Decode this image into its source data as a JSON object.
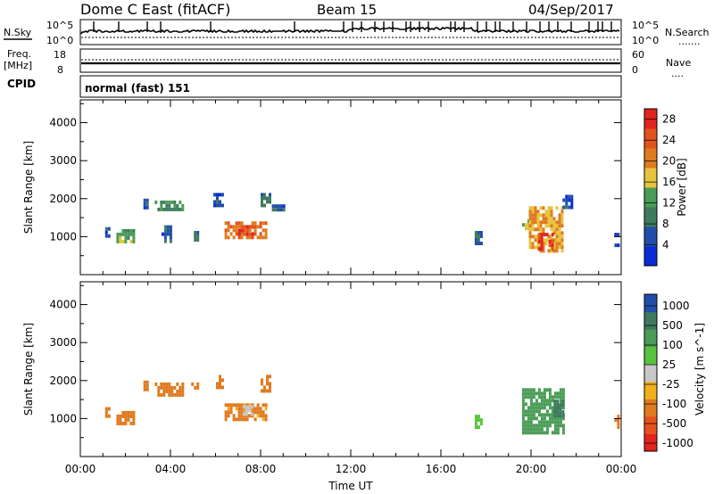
{
  "header": {
    "title": "Dome C East (fitACF)",
    "beam": "Beam 15",
    "date": "04/Sep/2017"
  },
  "nsky_panel": {
    "left_label": "N.Sky",
    "right_label": "N.Search",
    "left_ticks": [
      "10^5",
      "10^0"
    ],
    "right_ticks": [
      "10^5",
      "10^0"
    ]
  },
  "freq_panel": {
    "left_label_line1": "Freq.",
    "left_label_line2": "[MHz]",
    "right_label": "Nave",
    "left_ticks": [
      "18",
      "8"
    ],
    "right_ticks": [
      "60",
      "0"
    ]
  },
  "cpid": {
    "label": "CPID",
    "value": "normal (fast) 151"
  },
  "colors": {
    "blue": "#1f4fa8",
    "dark_green": "#3e7a5e",
    "green": "#4a9c56",
    "yellow": "#e6c43c",
    "orange": "#e07a1f",
    "red": "#e0251d",
    "gray": "#c8c8c8",
    "light_green": "#58c43e"
  },
  "chart_data": [
    {
      "type": "heatmap",
      "name": "Power",
      "ylabel": "Slant Range [km]",
      "xlabel": "Time UT",
      "x_ticks": [
        "00:00",
        "04:00",
        "08:00",
        "12:00",
        "16:00",
        "20:00",
        "00:00"
      ],
      "y_ticks": [
        "1000",
        "2000",
        "3000",
        "4000"
      ],
      "ylim": [
        0,
        4600
      ],
      "xlim_hours": [
        0,
        24
      ],
      "colorbar": {
        "label": "Power [dB]",
        "ticks": [
          "4",
          "8",
          "12",
          "16",
          "20",
          "24",
          "28"
        ],
        "range": [
          0,
          30
        ]
      },
      "patches": [
        {
          "t0": 1.1,
          "t1": 1.3,
          "r0": 1000,
          "r1": 1250,
          "v": 6
        },
        {
          "t0": 1.6,
          "t1": 2.4,
          "r0": 900,
          "r1": 1200,
          "v": 14
        },
        {
          "t0": 2.8,
          "t1": 3.0,
          "r0": 1750,
          "r1": 2000,
          "v": 5
        },
        {
          "t0": 3.3,
          "t1": 4.6,
          "r0": 1700,
          "r1": 1950,
          "v": 11
        },
        {
          "t0": 3.6,
          "t1": 4.0,
          "r0": 900,
          "r1": 1300,
          "v": 6
        },
        {
          "t0": 4.8,
          "t1": 5.2,
          "r0": 950,
          "r1": 1150,
          "v": 7
        },
        {
          "t0": 5.9,
          "t1": 6.3,
          "r0": 1850,
          "r1": 2150,
          "v": 6
        },
        {
          "t0": 6.4,
          "t1": 8.3,
          "r0": 950,
          "r1": 1400,
          "v": 22
        },
        {
          "t0": 7.0,
          "t1": 7.7,
          "r0": 1100,
          "r1": 1300,
          "v": 28
        },
        {
          "t0": 8.0,
          "t1": 8.4,
          "r0": 1800,
          "r1": 2150,
          "v": 7
        },
        {
          "t0": 8.5,
          "t1": 9.0,
          "r0": 1700,
          "r1": 1850,
          "v": 6
        },
        {
          "t0": 17.5,
          "t1": 17.8,
          "r0": 800,
          "r1": 1150,
          "v": 8
        },
        {
          "t0": 19.6,
          "t1": 20.0,
          "r0": 1200,
          "r1": 1450,
          "v": 14
        },
        {
          "t0": 19.9,
          "t1": 21.4,
          "r0": 650,
          "r1": 1800,
          "v": 18
        },
        {
          "t0": 20.3,
          "t1": 21.0,
          "r0": 700,
          "r1": 1100,
          "v": 28
        },
        {
          "t0": 21.4,
          "t1": 21.8,
          "r0": 1750,
          "r1": 2100,
          "v": 5
        },
        {
          "t0": 23.7,
          "t1": 23.9,
          "r0": 800,
          "r1": 1100,
          "v": 5
        }
      ]
    },
    {
      "type": "heatmap",
      "name": "Velocity",
      "ylabel": "Slant Range [km]",
      "xlabel": "Time UT",
      "x_ticks": [
        "00:00",
        "04:00",
        "08:00",
        "12:00",
        "16:00",
        "20:00",
        "00:00"
      ],
      "y_ticks": [
        "1000",
        "2000",
        "3000",
        "4000"
      ],
      "ylim": [
        0,
        4600
      ],
      "xlim_hours": [
        0,
        24
      ],
      "colorbar": {
        "label": "Velocity [m s^-1]",
        "ticks": [
          "1000",
          "500",
          "100",
          "25",
          "-25",
          "-100",
          "-500",
          "-1000"
        ],
        "range": [
          -1000,
          1000
        ]
      },
      "patches": [
        {
          "t0": 1.1,
          "t1": 1.3,
          "r0": 1100,
          "r1": 1300,
          "v": -200
        },
        {
          "t0": 1.6,
          "t1": 2.4,
          "r0": 900,
          "r1": 1200,
          "v": -300
        },
        {
          "t0": 2.8,
          "t1": 3.0,
          "r0": 1750,
          "r1": 2000,
          "v": -300
        },
        {
          "t0": 3.3,
          "t1": 4.6,
          "r0": 1650,
          "r1": 1950,
          "v": -300
        },
        {
          "t0": 4.8,
          "t1": 5.2,
          "r0": 1800,
          "r1": 1950,
          "v": -300
        },
        {
          "t0": 5.9,
          "t1": 6.3,
          "r0": 1850,
          "r1": 2150,
          "v": -300
        },
        {
          "t0": 6.4,
          "t1": 8.3,
          "r0": 950,
          "r1": 1400,
          "v": -150
        },
        {
          "t0": 7.2,
          "t1": 7.6,
          "r0": 1100,
          "r1": 1350,
          "v": 0
        },
        {
          "t0": 8.0,
          "t1": 8.4,
          "r0": 1750,
          "r1": 2150,
          "v": -300
        },
        {
          "t0": 17.5,
          "t1": 17.8,
          "r0": 800,
          "r1": 1100,
          "v": 50
        },
        {
          "t0": 19.6,
          "t1": 21.4,
          "r0": 600,
          "r1": 1800,
          "v": 200
        },
        {
          "t0": 21.0,
          "t1": 21.4,
          "r0": 1100,
          "r1": 1500,
          "v": 800
        },
        {
          "t0": 23.7,
          "t1": 23.9,
          "r0": 800,
          "r1": 1100,
          "v": -300
        }
      ]
    }
  ]
}
